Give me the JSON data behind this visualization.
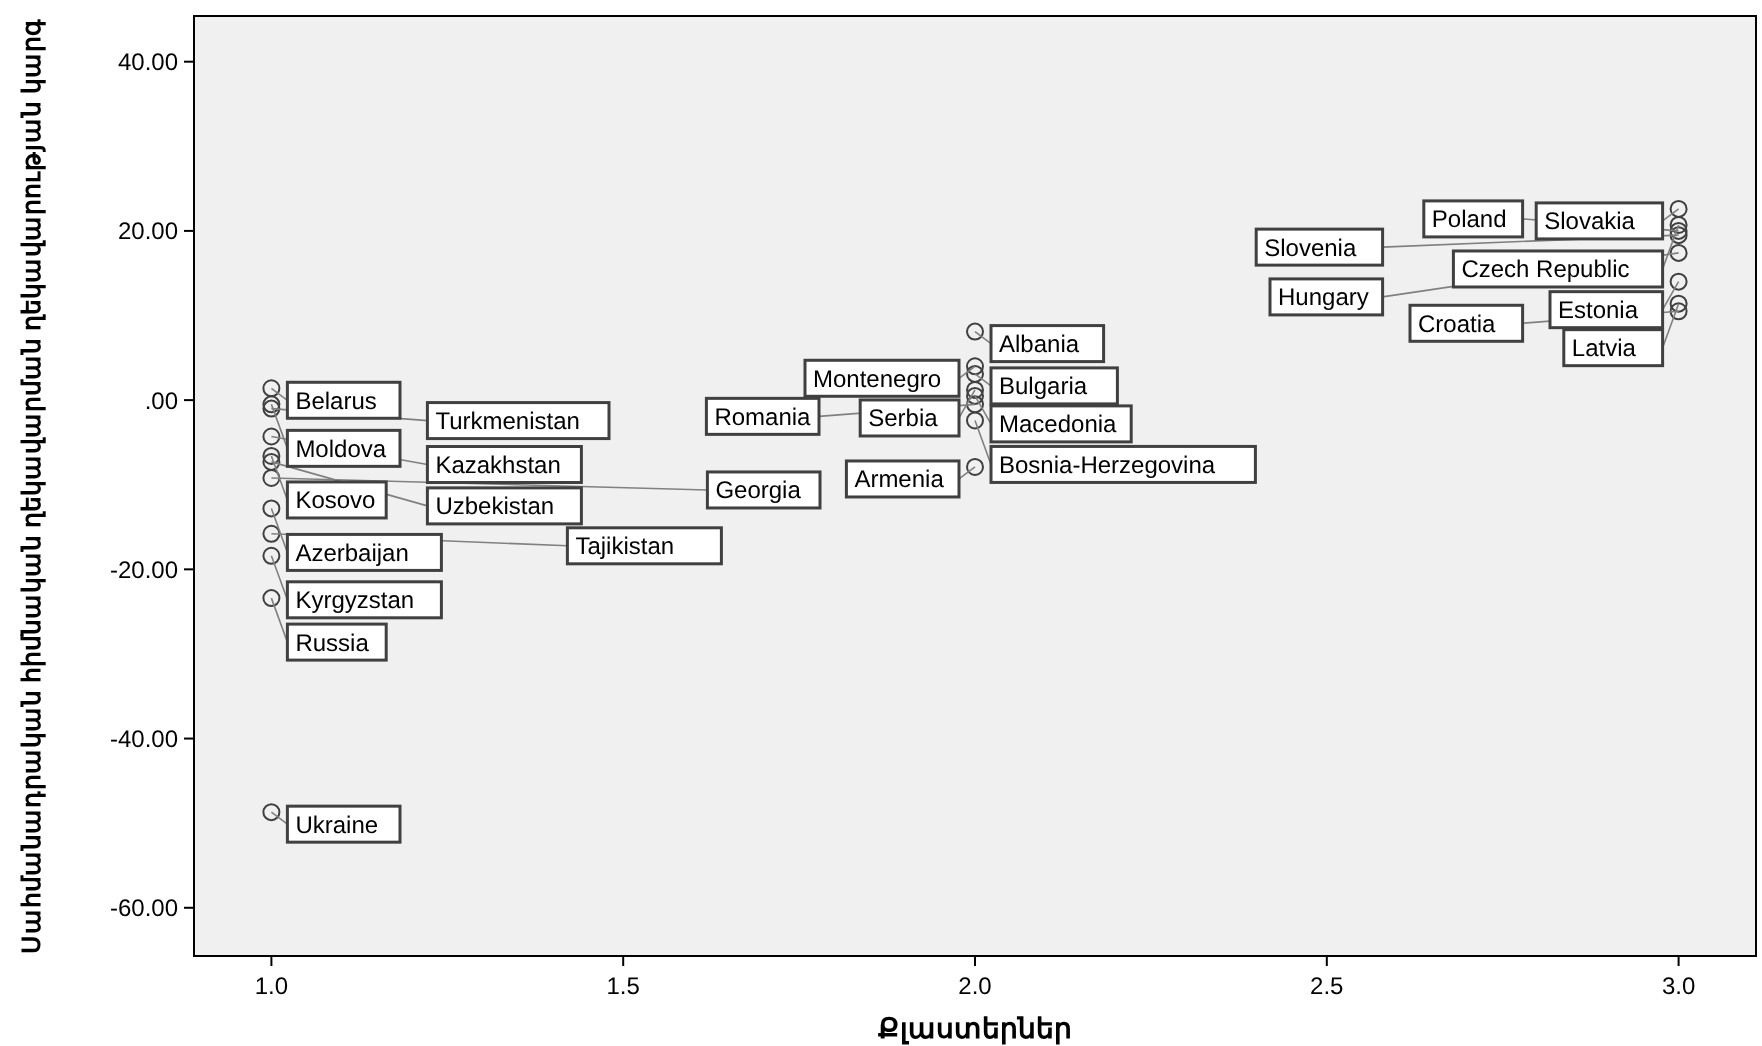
{
  "chart_data": {
    "type": "scatter",
    "xlabel": "Քլաստերներ",
    "ylabel": "Սահմանադրական հիմնական ղեկավարման ղեկավարության կարգ",
    "x": [
      1,
      1,
      1,
      1,
      1,
      1,
      1,
      1,
      1,
      1,
      1,
      1,
      2,
      2,
      2,
      2,
      2,
      2,
      2,
      2,
      3,
      3,
      3,
      3,
      3,
      3,
      3,
      3
    ],
    "values": [
      1.4,
      -0.5,
      -1.0,
      -4.3,
      -6.6,
      -7.3,
      -9.2,
      -12.8,
      -15.8,
      -18.4,
      -23.4,
      -48.7,
      8.1,
      4.0,
      3.1,
      1.2,
      0.5,
      -0.5,
      -2.4,
      -7.9,
      22.6,
      20.7,
      20.0,
      19.5,
      17.4,
      14.0,
      11.4,
      10.5
    ],
    "color": "#404040",
    "marker": "circle",
    "xlim": [
      0.89,
      3.11
    ],
    "ylim": [
      -65.7,
      45.4
    ],
    "xticks": [
      {
        "value": 1,
        "label": "1.0"
      },
      {
        "value": 1.5,
        "label": "1.5"
      },
      {
        "value": 2,
        "label": "2.0"
      },
      {
        "value": 2.5,
        "label": "2.5"
      },
      {
        "value": 3,
        "label": "3.0"
      }
    ],
    "yticks": [
      {
        "value": -60,
        "label": "-60.00"
      },
      {
        "value": -40,
        "label": "-40.00"
      },
      {
        "value": -20,
        "label": "-20.00"
      },
      {
        "value": 0,
        "label": ".00"
      },
      {
        "value": 20,
        "label": "20.00"
      },
      {
        "value": 40,
        "label": "40.00"
      }
    ],
    "annotations": [
      {
        "text": "Belarus",
        "x": 1,
        "y": 1.4
      },
      {
        "text": "Moldova",
        "x": 1,
        "y": -0.5
      },
      {
        "text": "Turkmenistan",
        "x": 1,
        "y": -1.0
      },
      {
        "text": "Kazakhstan",
        "x": 1,
        "y": -4.3
      },
      {
        "text": "Kosovo",
        "x": 1,
        "y": -6.6
      },
      {
        "text": "Uzbekistan",
        "x": 1,
        "y": -7.3
      },
      {
        "text": "Georgia",
        "x": 1,
        "y": -9.2
      },
      {
        "text": "Azerbaijan",
        "x": 1,
        "y": -12.8
      },
      {
        "text": "Tajikistan",
        "x": 1,
        "y": -15.8
      },
      {
        "text": "Kyrgyzstan",
        "x": 1,
        "y": -18.4
      },
      {
        "text": "Russia",
        "x": 1,
        "y": -23.4
      },
      {
        "text": "Ukraine",
        "x": 1,
        "y": -48.7
      },
      {
        "text": "Albania",
        "x": 2,
        "y": 8.1
      },
      {
        "text": "Montenegro",
        "x": 2,
        "y": 4.0
      },
      {
        "text": "Bulgaria",
        "x": 2,
        "y": 3.1
      },
      {
        "text": "Serbia",
        "x": 2,
        "y": 1.2
      },
      {
        "text": "Macedonia",
        "x": 2,
        "y": 0.5
      },
      {
        "text": "Romania",
        "x": 2,
        "y": -0.5
      },
      {
        "text": "Bosnia-Herzegovina",
        "x": 2,
        "y": -2.4
      },
      {
        "text": "Armenia",
        "x": 2,
        "y": -7.9
      },
      {
        "text": "Slovakia",
        "x": 3,
        "y": 22.6
      },
      {
        "text": "Czech Republic",
        "x": 3,
        "y": 20.7
      },
      {
        "text": "Poland",
        "x": 3,
        "y": 20.0
      },
      {
        "text": "Slovenia",
        "x": 3,
        "y": 19.5
      },
      {
        "text": "Hungary",
        "x": 3,
        "y": 17.4
      },
      {
        "text": "Estonia",
        "x": 3,
        "y": 14.0
      },
      {
        "text": "Latvia",
        "x": 3,
        "y": 11.4
      },
      {
        "text": "Croatia",
        "x": 3,
        "y": 10.5
      }
    ]
  }
}
